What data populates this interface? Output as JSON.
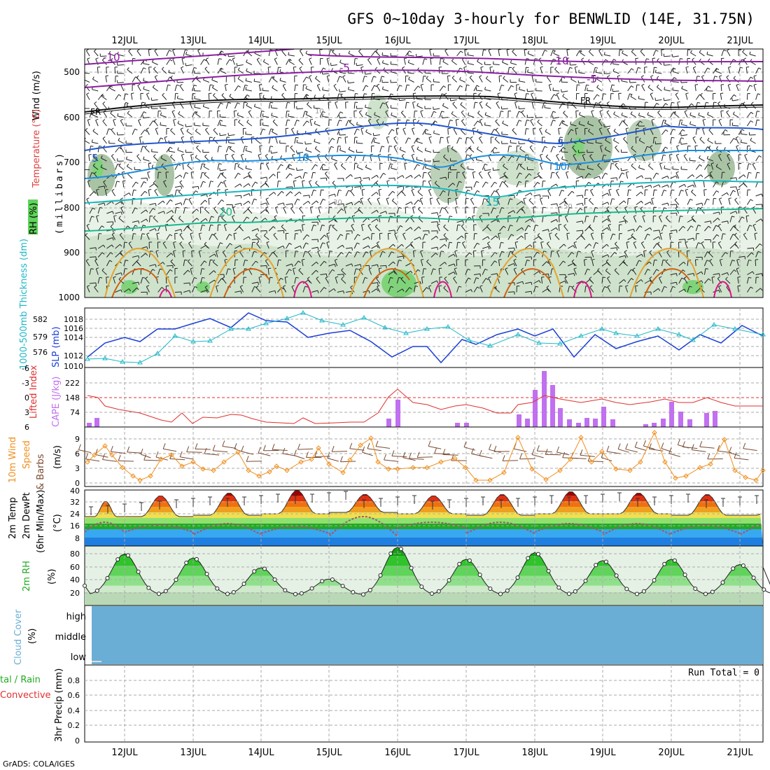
{
  "title": "GFS 0~10day 3-hourly for BENWLID (14E, 31.75N)",
  "footer": "GrADS: COLA/IGES",
  "dates": [
    "12JUL",
    "13JUL",
    "14JUL",
    "15JUL",
    "16JUL",
    "17JUL",
    "18JUL",
    "19JUL",
    "20JUL",
    "21JUL"
  ],
  "panels": {
    "upper": {
      "ylabel": "(millibars)",
      "label_wind": "Wind (m/s)",
      "label_temp": "Temperature (°C)",
      "label_rh": "RH (%)",
      "yticks": [
        "500",
        "600",
        "700",
        "800",
        "900",
        "1000"
      ],
      "contour_labels": [
        "-10",
        "-5",
        "FR",
        "5",
        "10",
        "15",
        "20",
        "-10",
        "-5",
        "FR",
        "5",
        "10"
      ],
      "rh_labels": [
        "10",
        "30",
        "50"
      ]
    },
    "sfc": {
      "label_thick": "1000-500mb Thickness (dm)",
      "label_slp": "SLP (mb)",
      "yticks_left": [
        "582",
        "579",
        "576"
      ],
      "yticks_right": [
        "1018",
        "1016",
        "1014",
        "1012",
        "1010"
      ]
    },
    "stab": {
      "label_li": "Lifted Index",
      "label_cape": "CAPE (J/kg)",
      "yticks_left": [
        "-6",
        "-3",
        "0",
        "3",
        "6"
      ],
      "yticks_right": [
        "222",
        "148",
        "74"
      ]
    },
    "wind10": {
      "label1": "10m Wind",
      "label2": "Speed",
      "label3": "& Barbs",
      "unit": "(m/s)",
      "yticks": [
        "9",
        "6",
        "3",
        "0"
      ]
    },
    "temp2m": {
      "label1": "2m Temp",
      "label2": "2m DewPt",
      "label3": "(6hr Min/Max)",
      "unit": "(°C)",
      "yticks": [
        "40",
        "32",
        "24",
        "16",
        "8"
      ]
    },
    "rh2m": {
      "label": "2m RH",
      "unit": "(%)",
      "yticks": [
        "80",
        "60",
        "40",
        "20"
      ]
    },
    "cloud": {
      "label1": "Cloud Cover",
      "unit": "(%)",
      "yticks": [
        "high",
        "middle",
        "low"
      ]
    },
    "precip": {
      "label1": "tal / Rain",
      "label2": "Convective",
      "ylabel": "3hr Precip (mm)",
      "run_total": "Run Total = 0",
      "yticks": [
        "0.8",
        "0.6",
        "0.4",
        "0.2",
        "0"
      ]
    }
  },
  "colors": {
    "li": "#e03030",
    "cape": "#c070f0",
    "slp": "#1a3fd6",
    "thick": "#20b8c8",
    "wind_speed": "#f09020",
    "cloud": "#6aaed6",
    "rh_fill": "#22cc22",
    "temp_hot": "#b00000",
    "dewpt": "#9c5a6a"
  },
  "chart_data": [
    {
      "type": "line",
      "title": "1000-500mb Thickness (dm) & SLP (mb)",
      "x": [
        "12JUL",
        "13JUL",
        "14JUL",
        "15JUL",
        "16JUL",
        "17JUL",
        "18JUL",
        "19JUL",
        "20JUL",
        "21JUL"
      ],
      "series": [
        {
          "name": "SLP (mb)",
          "values": [
            1015.0,
            1016.0,
            1017.5,
            1016.5,
            1014.5,
            1014.5,
            1014.0,
            1016.0,
            1015.5,
            1015.0
          ]
        },
        {
          "name": "1000-500mb Thickness (dm)",
          "values": [
            576.0,
            577.5,
            580.0,
            581.5,
            580.5,
            580.0,
            578.0,
            580.0,
            581.0,
            580.0
          ]
        }
      ]
    },
    {
      "type": "bar",
      "title": "CAPE (J/kg)",
      "ylim": [
        0,
        250
      ],
      "x": [
        "16JUL",
        "18JUL",
        "18JUL",
        "19JUL",
        "20JUL",
        "20JUL"
      ],
      "values": [
        120,
        175,
        250,
        90,
        120,
        80
      ]
    },
    {
      "type": "line",
      "title": "10m Wind Speed (m/s)",
      "ylim": [
        0,
        10
      ],
      "x": [
        "12JUL",
        "13JUL",
        "14JUL",
        "15JUL",
        "16JUL",
        "17JUL",
        "18JUL",
        "19JUL",
        "20JUL",
        "21JUL"
      ],
      "values": [
        6,
        6,
        4,
        6,
        3,
        1,
        9,
        9,
        2,
        1
      ]
    },
    {
      "type": "area",
      "title": "2m Temp / DewPt (°C)",
      "ylim": [
        0,
        40
      ],
      "x": [
        "12JUL",
        "13JUL",
        "14JUL",
        "15JUL",
        "16JUL",
        "17JUL",
        "18JUL",
        "19JUL",
        "20JUL",
        "21JUL"
      ],
      "series": [
        {
          "name": "2m Temp",
          "values": [
            30,
            35,
            37,
            40,
            36,
            35,
            36,
            38,
            37,
            38
          ]
        },
        {
          "name": "2m DewPt",
          "values": [
            16,
            14,
            15,
            12,
            20,
            16,
            16,
            14,
            15,
            14
          ]
        }
      ]
    },
    {
      "type": "area",
      "title": "2m RH (%)",
      "ylim": [
        0,
        90
      ],
      "x": [
        "12JUL",
        "13JUL",
        "14JUL",
        "15JUL",
        "16JUL",
        "17JUL",
        "18JUL",
        "19JUL",
        "20JUL",
        "21JUL"
      ],
      "values": [
        78,
        72,
        57,
        40,
        88,
        70,
        80,
        68,
        70,
        62
      ]
    }
  ]
}
